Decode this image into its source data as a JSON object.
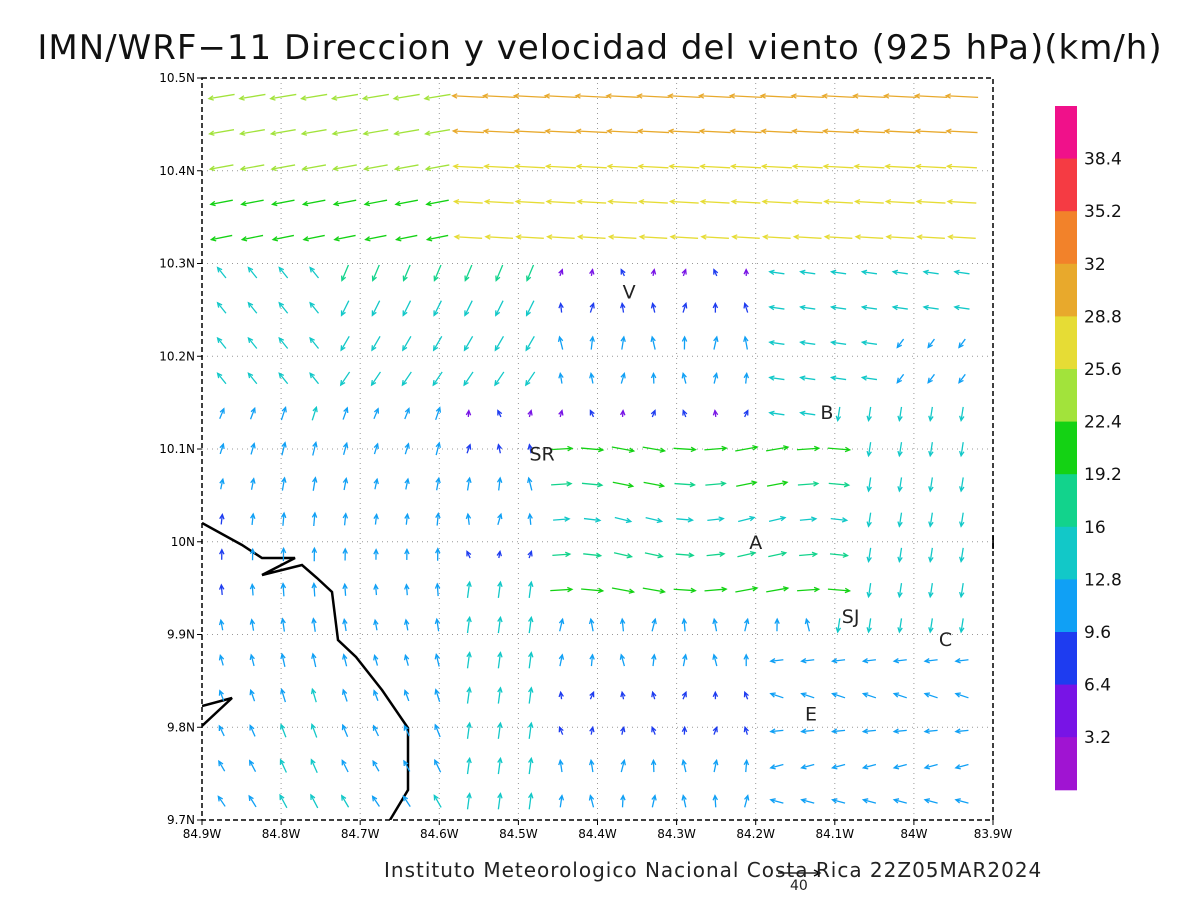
{
  "title": "IMN/WRF−11 Direccion y velocidad del viento (925 hPa)(km/h)",
  "footer": "Instituto Meteorologico Nacional Costa Rica 22Z05MAR2024",
  "reference_vector": {
    "label": "40",
    "value": 40
  },
  "lon_labels": [
    "84.9W",
    "84.8W",
    "84.7W",
    "84.6W",
    "84.5W",
    "84.4W",
    "84.3W",
    "84.2W",
    "84.1W",
    "84W",
    "83.9W"
  ],
  "lat_labels": [
    "10.5N",
    "10.4N",
    "10.3N",
    "10.2N",
    "10.1N",
    "10N",
    "9.9N",
    "9.8N",
    "9.7N"
  ],
  "colorbar": {
    "labels": [
      "38.4",
      "35.2",
      "32",
      "28.8",
      "25.6",
      "22.4",
      "19.2",
      "16",
      "12.8",
      "9.6",
      "6.4",
      "3.2"
    ],
    "colors": [
      "#f0118a",
      "#f53b43",
      "#f2822a",
      "#e8a92c",
      "#e6dc35",
      "#a2e33b",
      "#14d214",
      "#12d38c",
      "#12c8c8",
      "#10a0f5",
      "#1e3cf0",
      "#7814e6",
      "#a014d2"
    ]
  },
  "places": [
    {
      "label": "V",
      "lon": -84.36,
      "lat": 10.27
    },
    {
      "label": "B",
      "lon": -84.11,
      "lat": 10.14
    },
    {
      "label": "SR",
      "lon": -84.47,
      "lat": 10.095
    },
    {
      "label": "A",
      "lon": -84.2,
      "lat": 10.0
    },
    {
      "label": "I",
      "lon": -83.9,
      "lat": 10.0
    },
    {
      "label": "SJ",
      "lon": -84.08,
      "lat": 9.92
    },
    {
      "label": "C",
      "lon": -83.96,
      "lat": 9.895
    },
    {
      "label": "E",
      "lon": -84.13,
      "lat": 9.815
    }
  ]
}
